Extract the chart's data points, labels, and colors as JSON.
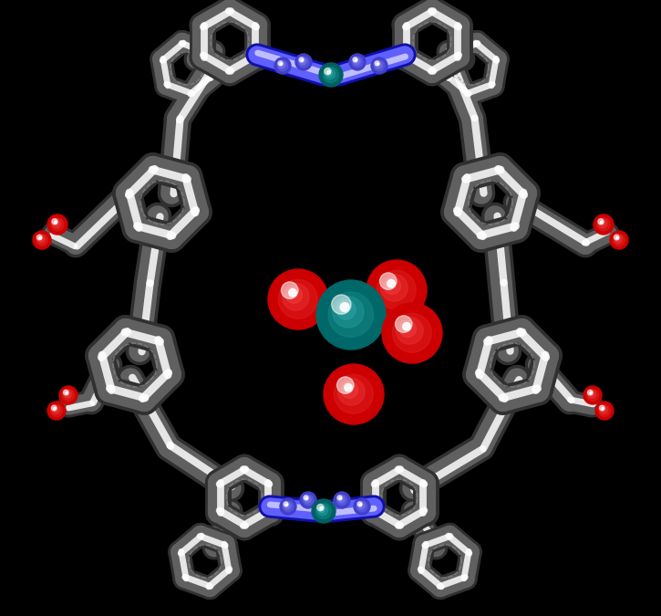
{
  "bg_color": "#000000",
  "tube_dark": "#303030",
  "tube_mid": "#606060",
  "tube_light": "#ffffff",
  "nitrogen_tube_color": "#6060ff",
  "nitrogen_tube_light": "#c0c0ff",
  "metal_color": "#006060",
  "metal_light": "#40d0d0",
  "oxygen_color": "#cc0000",
  "tc_color": "#006868",
  "tc_light": "#40c0c0",
  "figsize": [
    7.25,
    6.75
  ],
  "dpi": 100
}
